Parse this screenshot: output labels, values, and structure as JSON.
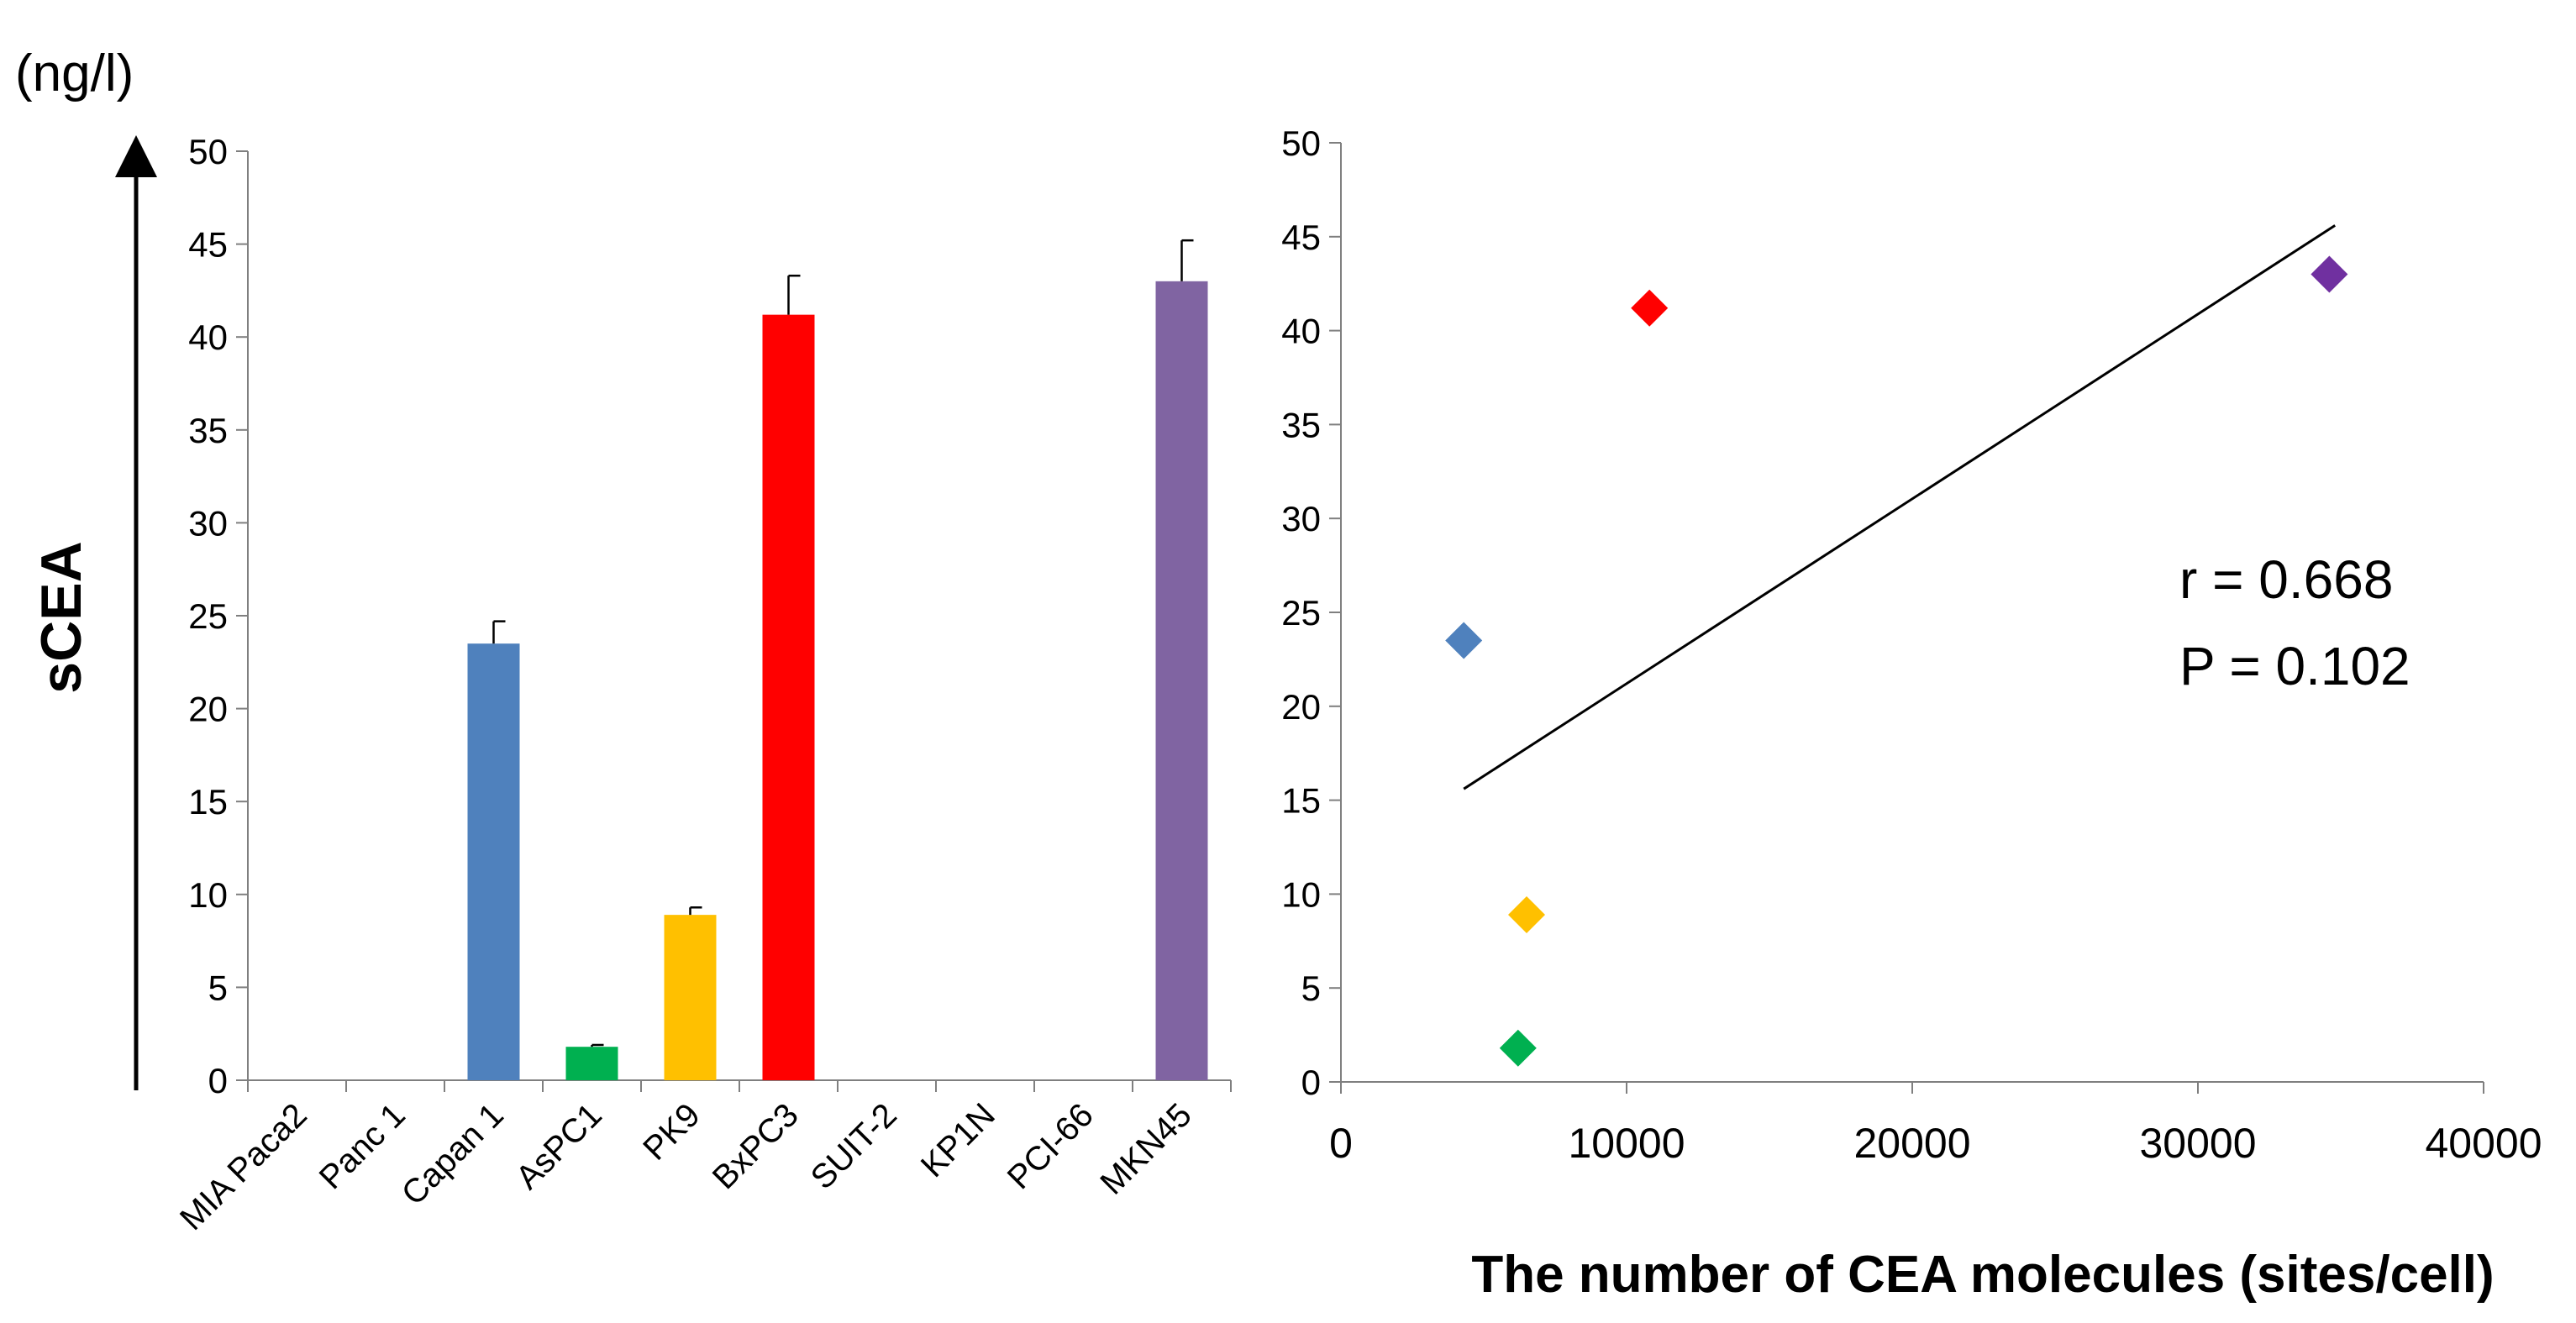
{
  "unit_label": "(ng/l)",
  "chart_data": [
    {
      "type": "bar",
      "ylabel": "sCEA",
      "ylim": [
        0,
        50
      ],
      "yticks": [
        0,
        5,
        10,
        15,
        20,
        25,
        30,
        35,
        40,
        45,
        50
      ],
      "categories": [
        "MIA Paca2",
        "Panc 1",
        "Capan 1",
        "AsPC1",
        "PK9",
        "BxPC3",
        "SUIT-2",
        "KP1N",
        "PCI-66",
        "MKN45"
      ],
      "values": [
        0,
        0,
        23.5,
        1.8,
        8.9,
        41.2,
        0,
        0,
        0,
        43.0
      ],
      "errors": [
        0,
        0,
        1.2,
        0.1,
        0.4,
        2.1,
        0,
        0,
        0,
        2.2
      ],
      "colors": [
        "#4f81bd",
        "#4f81bd",
        "#4f81bd",
        "#00b050",
        "#ffc000",
        "#ff0000",
        "#4f81bd",
        "#4f81bd",
        "#4f81bd",
        "#8064a2"
      ]
    },
    {
      "type": "scatter",
      "xlabel": "The number of CEA molecules (sites/cell)",
      "xlim": [
        0,
        40000
      ],
      "ylim": [
        0,
        50
      ],
      "xticks": [
        0,
        10000,
        20000,
        30000,
        40000
      ],
      "yticks": [
        0,
        5,
        10,
        15,
        20,
        25,
        30,
        35,
        40,
        45,
        50
      ],
      "points": [
        {
          "x": 4300,
          "y": 23.5,
          "color": "#4f81bd"
        },
        {
          "x": 6200,
          "y": 1.8,
          "color": "#00b050"
        },
        {
          "x": 6500,
          "y": 8.9,
          "color": "#ffc000"
        },
        {
          "x": 10800,
          "y": 41.2,
          "color": "#ff0000"
        },
        {
          "x": 34600,
          "y": 43.0,
          "color": "#7030a0"
        }
      ],
      "trendline": {
        "x1": 4300,
        "y1": 15.6,
        "x2": 34800,
        "y2": 45.6
      },
      "r_text": "r = 0.668",
      "p_text": "P = 0.102"
    }
  ]
}
